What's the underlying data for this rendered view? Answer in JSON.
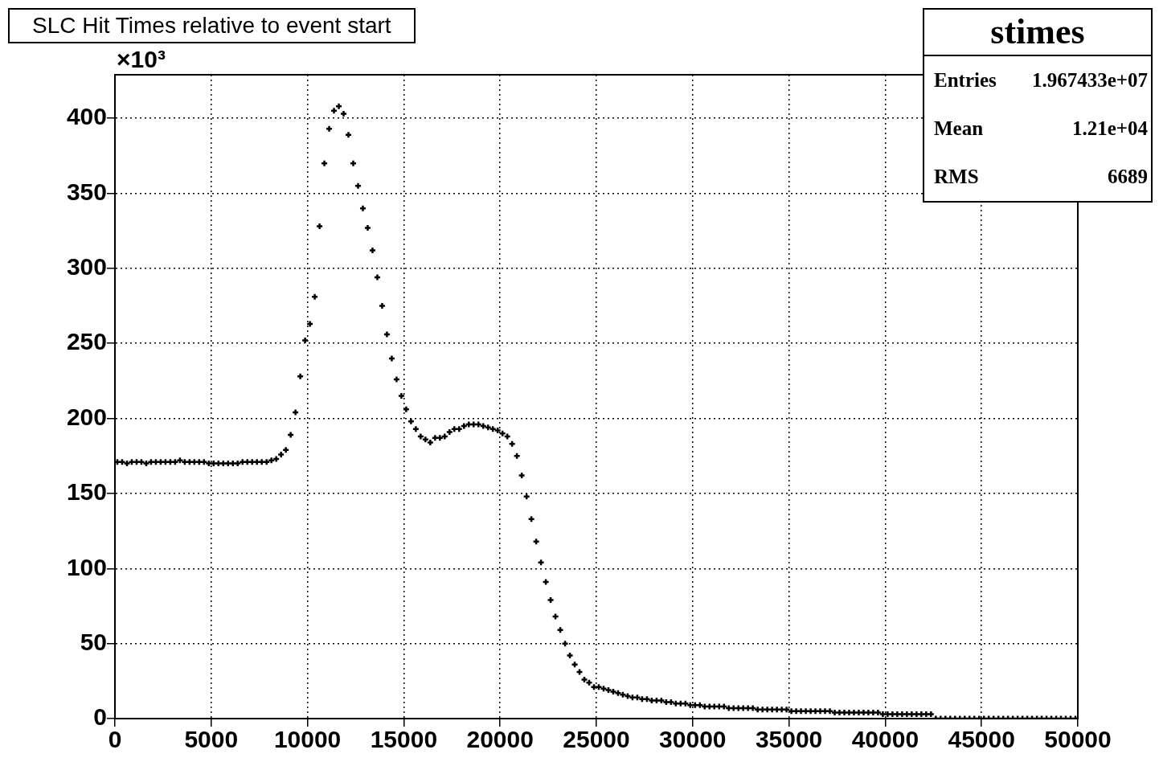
{
  "chart_data": {
    "type": "scatter",
    "title": "SLC Hit Times relative to event start",
    "annotations": [
      "×10³",
      "stimes",
      "Entries",
      "1.967433e+07",
      "Mean",
      "1.21e+04",
      "RMS",
      "6689"
    ],
    "x": [
      125,
      375,
      625,
      875,
      1125,
      1375,
      1625,
      1875,
      2125,
      2375,
      2625,
      2875,
      3125,
      3375,
      3625,
      3875,
      4125,
      4375,
      4625,
      4875,
      5125,
      5375,
      5625,
      5875,
      6125,
      6375,
      6625,
      6875,
      7125,
      7375,
      7625,
      7875,
      8125,
      8375,
      8625,
      8875,
      9125,
      9375,
      9625,
      9875,
      10125,
      10375,
      10625,
      10875,
      11125,
      11375,
      11625,
      11875,
      12125,
      12375,
      12625,
      12875,
      13125,
      13375,
      13625,
      13875,
      14125,
      14375,
      14625,
      14875,
      15125,
      15375,
      15625,
      15875,
      16125,
      16375,
      16625,
      16875,
      17125,
      17375,
      17625,
      17875,
      18125,
      18375,
      18625,
      18875,
      19125,
      19375,
      19625,
      19875,
      20125,
      20375,
      20625,
      20875,
      21125,
      21375,
      21625,
      21875,
      22125,
      22375,
      22625,
      22875,
      23125,
      23375,
      23625,
      23875,
      24125,
      24375,
      24625,
      24875,
      25125,
      25375,
      25625,
      25875,
      26125,
      26375,
      26625,
      26875,
      27125,
      27375,
      27625,
      27875,
      28125,
      28375,
      28625,
      28875,
      29125,
      29375,
      29625,
      29875,
      30125,
      30375,
      30625,
      30875,
      31125,
      31375,
      31625,
      31875,
      32125,
      32375,
      32625,
      32875,
      33125,
      33375,
      33625,
      33875,
      34125,
      34375,
      34625,
      34875,
      35125,
      35375,
      35625,
      35875,
      36125,
      36375,
      36625,
      36875,
      37125,
      37375,
      37625,
      37875,
      38125,
      38375,
      38625,
      38875,
      39125,
      39375,
      39625,
      39875,
      40125,
      40375,
      40625,
      40875,
      41125,
      41375,
      41625,
      41875,
      42125,
      42375,
      42625,
      42875,
      43125,
      43375,
      43625,
      43875,
      44125,
      44375,
      44625,
      44875,
      45125,
      45375,
      45625,
      45875,
      46125,
      46375,
      46625,
      46875,
      47125,
      47375,
      47625,
      47875,
      48125,
      48375,
      48625,
      48875,
      49125,
      49375,
      49625,
      49875
    ],
    "values": [
      171,
      171,
      170,
      171,
      171,
      171,
      170,
      171,
      171,
      171,
      171,
      171,
      171,
      172,
      171,
      171,
      171,
      171,
      171,
      170,
      170,
      170,
      170,
      170,
      170,
      170,
      171,
      171,
      171,
      171,
      171,
      171,
      172,
      173,
      176,
      179,
      189,
      204,
      228,
      252,
      263,
      281,
      328,
      370,
      393,
      405,
      408,
      403,
      389,
      370,
      355,
      340,
      327,
      312,
      294,
      275,
      256,
      240,
      226,
      215,
      206,
      198,
      193,
      188,
      186,
      184,
      187,
      187,
      188,
      191,
      193,
      193,
      195,
      196,
      196,
      196,
      195,
      194,
      193,
      192,
      190,
      188,
      183,
      175,
      162,
      148,
      133,
      118,
      104,
      91,
      79,
      68,
      59,
      50,
      42,
      36,
      31,
      26,
      24,
      21,
      21,
      20,
      19,
      18,
      17,
      16,
      15,
      14,
      14,
      13,
      13,
      12,
      12,
      12,
      11,
      11,
      10,
      10,
      10,
      9,
      9,
      9,
      8,
      8,
      8,
      8,
      8,
      7,
      7,
      7,
      7,
      7,
      7,
      6,
      6,
      6,
      6,
      6,
      6,
      6,
      5,
      5,
      5,
      5,
      5,
      5,
      5,
      5,
      5,
      4,
      4,
      4,
      4,
      4,
      4,
      4,
      4,
      4,
      4,
      3,
      3,
      3,
      3,
      3,
      3,
      3,
      3,
      3,
      3,
      3,
      0,
      0,
      0,
      0,
      0,
      0,
      0,
      0,
      0,
      0,
      0,
      0,
      0,
      0,
      0,
      0,
      0,
      0,
      0,
      0,
      0,
      0,
      0,
      0,
      0,
      0,
      0,
      0,
      0,
      0
    ],
    "color": "#000000",
    "marker": "cross",
    "xlim": [
      0,
      50000
    ],
    "xticks": [
      0,
      5000,
      10000,
      15000,
      20000,
      25000,
      30000,
      35000,
      40000,
      45000,
      50000
    ],
    "ylim": [
      0,
      429
    ],
    "yticks": [
      0,
      50,
      100,
      150,
      200,
      250,
      300,
      350,
      400
    ],
    "grid": true,
    "legend": false
  }
}
